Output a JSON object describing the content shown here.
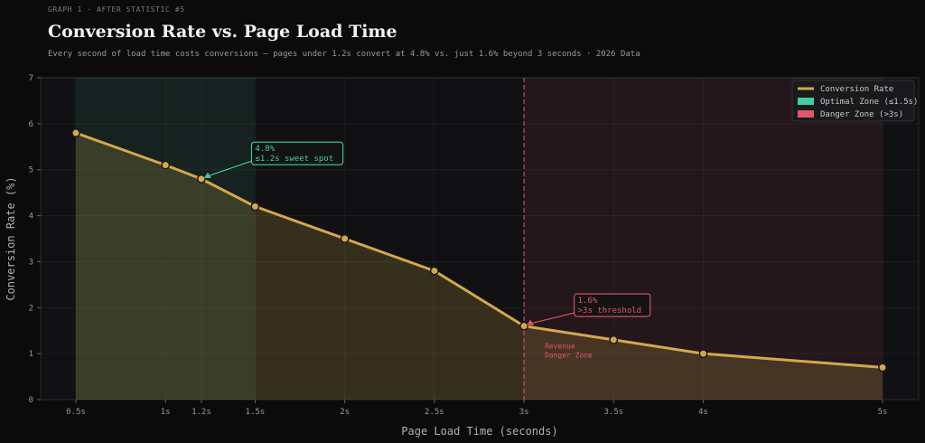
{
  "header": {
    "eyebrow": "GRAPH 1  ·  AFTER STATISTIC #5",
    "title": "Conversion Rate vs. Page Load Time",
    "subtitle": "Every second of load time costs conversions — pages under 1.2s convert at 4.8% vs. just 1.6% beyond 3 seconds  ·  2026 Data"
  },
  "colors": {
    "line": "#d4a84b",
    "optimal": "#3ecfa0",
    "danger": "#e0566e",
    "axis_text": "#9a9a9a"
  },
  "chart_data": {
    "type": "line",
    "xlabel": "Page Load Time (seconds)",
    "ylabel": "Conversion Rate (%)",
    "xlim": [
      0.5,
      5
    ],
    "ylim": [
      0,
      7
    ],
    "x_ticks": [
      0.5,
      1,
      1.2,
      1.5,
      2,
      2.5,
      3,
      3.5,
      4,
      5
    ],
    "x_tick_labels": [
      "0.5s",
      "1s",
      "1.2s",
      "1.5s",
      "2s",
      "2.5s",
      "3s",
      "3.5s",
      "4s",
      "5s"
    ],
    "y_ticks": [
      0,
      1,
      2,
      3,
      4,
      5,
      6,
      7
    ],
    "grid": true,
    "legend_position": "top-right",
    "series": [
      {
        "name": "Conversion Rate",
        "x": [
          0.5,
          1,
          1.2,
          1.5,
          2,
          2.5,
          3,
          3.5,
          4,
          5
        ],
        "y": [
          5.8,
          5.1,
          4.8,
          4.2,
          3.5,
          2.8,
          1.6,
          1.3,
          1.0,
          0.7
        ]
      }
    ],
    "zones": [
      {
        "name": "Optimal Zone (≤1.5s)",
        "x_range": [
          0.5,
          1.5
        ],
        "color": "#3ecfa0"
      },
      {
        "name": "Danger Zone (>3s)",
        "x_range": [
          3,
          5
        ],
        "color": "#e0566e"
      }
    ],
    "threshold_line_x": 3,
    "annotations": [
      {
        "point_x": 1.2,
        "point_y": 4.8,
        "label_x": 1.5,
        "label_y": 5.6,
        "lines": [
          "4.8%",
          "≤1.2s sweet spot"
        ],
        "color": "#3ecfa0"
      },
      {
        "point_x": 3,
        "point_y": 1.6,
        "label_x": 3.3,
        "label_y": 2.3,
        "lines": [
          "1.6%",
          ">3s threshold"
        ],
        "color": "#e0566e"
      }
    ],
    "zone_note": {
      "x": 3.1,
      "y": 1.05,
      "lines": [
        "Revenue",
        "Danger Zone"
      ],
      "color": "#e0566e"
    }
  }
}
